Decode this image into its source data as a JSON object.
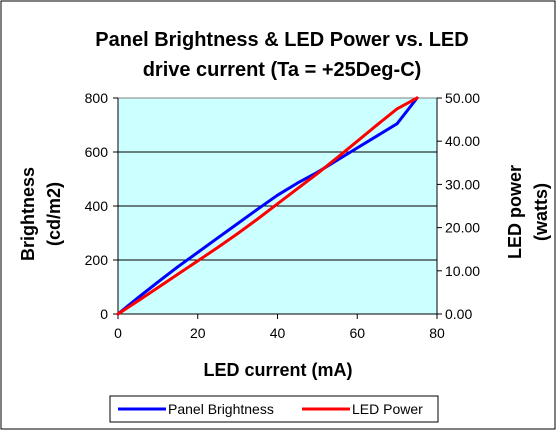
{
  "chart_data": {
    "type": "line",
    "title_line1": "Panel Brightness & LED Power vs. LED",
    "title_line2": "drive current (Ta = +25Deg-C)",
    "xlabel": "LED current (mA)",
    "ylabel_left_line1": "Brightness",
    "ylabel_left_line2": "(cd/m2)",
    "ylabel_right_line1": "LED power",
    "ylabel_right_line2": "(watts)",
    "xlim": [
      0,
      80
    ],
    "ylim_left": [
      0,
      800
    ],
    "ylim_right": [
      0,
      50
    ],
    "x_ticks": [
      "0",
      "20",
      "40",
      "60",
      "80"
    ],
    "y_left_ticks": [
      "0",
      "200",
      "400",
      "600",
      "800"
    ],
    "y_right_ticks": [
      "0.00",
      "10.00",
      "20.00",
      "30.00",
      "40.00",
      "50.00"
    ],
    "grid": true,
    "plot_background": "#ccffff",
    "legend_position": "bottom",
    "series": [
      {
        "name": "Panel Brightness",
        "color": "#0000ff",
        "axis": "left",
        "x": [
          0,
          5,
          10,
          15,
          20,
          25,
          30,
          35,
          40,
          45,
          50,
          55,
          60,
          65,
          70,
          75
        ],
        "y": [
          0,
          60,
          118,
          175,
          228,
          282,
          335,
          388,
          440,
          485,
          525,
          570,
          615,
          660,
          705,
          800
        ]
      },
      {
        "name": "LED Power",
        "color": "#ff0000",
        "axis": "right",
        "x": [
          0,
          5,
          10,
          15,
          20,
          25,
          30,
          35,
          40,
          45,
          50,
          55,
          60,
          65,
          70,
          75
        ],
        "y": [
          0,
          3.0,
          6.1,
          9.2,
          12.3,
          15.4,
          18.6,
          22.0,
          25.5,
          29.0,
          32.5,
          36.2,
          40.0,
          43.8,
          47.5,
          50.0
        ]
      }
    ]
  }
}
